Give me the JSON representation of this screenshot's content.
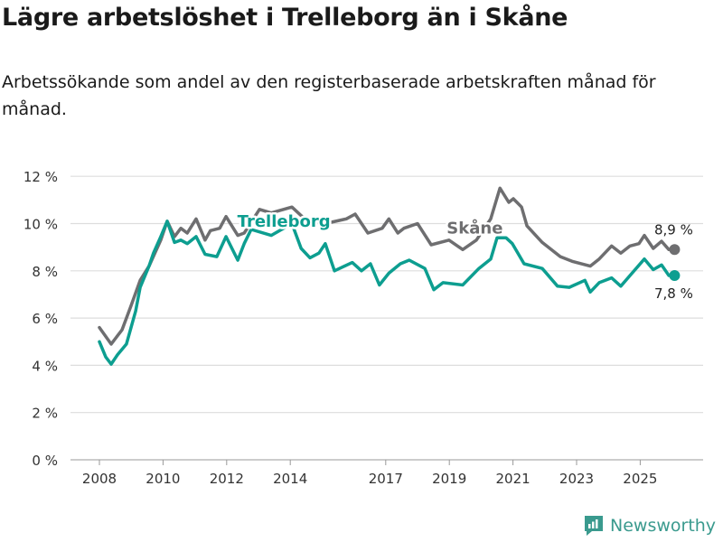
{
  "header": {
    "title": "Lägre arbetslöshet i Trelleborg än i Skåne",
    "subtitle": "Arbetssökande som andel av den registerbaserade arbetskraften månad för månad."
  },
  "brand": {
    "name": "Newsworthy",
    "color": "#3a9a8e"
  },
  "chart_data": {
    "type": "line",
    "title": "Lägre arbetslöshet i Trelleborg än i Skåne",
    "xlabel": "",
    "ylabel": "",
    "ylim": [
      0,
      12
    ],
    "xlim": [
      2007.0,
      2027.0
    ],
    "grid": true,
    "y_ticks": [
      0,
      2,
      4,
      6,
      8,
      10,
      12
    ],
    "y_tick_labels": [
      "0 %",
      "2 %",
      "4 %",
      "6 %",
      "8 %",
      "10 %",
      "12 %"
    ],
    "x_ticks": [
      2008,
      2010,
      2012,
      2014,
      2017,
      2019,
      2021,
      2023,
      2025
    ],
    "x_tick_labels": [
      "2008",
      "2010",
      "2012",
      "2014",
      "2017",
      "2019",
      "2021",
      "2023",
      "2025"
    ],
    "series": [
      {
        "name": "Skåne",
        "color": "#6e6e70",
        "end_label": "8,9 %",
        "points": [
          [
            2008.0,
            5.6
          ],
          [
            2008.37,
            4.9
          ],
          [
            2008.71,
            5.5
          ],
          [
            2008.99,
            6.5
          ],
          [
            2009.28,
            7.6
          ],
          [
            2009.56,
            8.2
          ],
          [
            2009.93,
            9.3
          ],
          [
            2010.13,
            10.1
          ],
          [
            2010.36,
            9.45
          ],
          [
            2010.56,
            9.8
          ],
          [
            2010.76,
            9.6
          ],
          [
            2011.04,
            10.2
          ],
          [
            2011.32,
            9.3
          ],
          [
            2011.49,
            9.7
          ],
          [
            2011.78,
            9.8
          ],
          [
            2011.98,
            10.3
          ],
          [
            2012.35,
            9.5
          ],
          [
            2012.55,
            9.6
          ],
          [
            2013.03,
            10.6
          ],
          [
            2013.4,
            10.45
          ],
          [
            2014.05,
            10.7
          ],
          [
            2014.53,
            10.1
          ],
          [
            2015.1,
            10.0
          ],
          [
            2015.76,
            10.2
          ],
          [
            2016.04,
            10.4
          ],
          [
            2016.44,
            9.6
          ],
          [
            2016.89,
            9.8
          ],
          [
            2017.1,
            10.2
          ],
          [
            2017.38,
            9.6
          ],
          [
            2017.57,
            9.8
          ],
          [
            2018.0,
            10.0
          ],
          [
            2018.43,
            9.1
          ],
          [
            2018.99,
            9.3
          ],
          [
            2019.42,
            8.9
          ],
          [
            2019.85,
            9.3
          ],
          [
            2020.3,
            10.2
          ],
          [
            2020.59,
            11.5
          ],
          [
            2020.87,
            10.9
          ],
          [
            2021.01,
            11.05
          ],
          [
            2021.27,
            10.7
          ],
          [
            2021.44,
            9.9
          ],
          [
            2021.92,
            9.2
          ],
          [
            2022.49,
            8.6
          ],
          [
            2022.86,
            8.4
          ],
          [
            2023.43,
            8.2
          ],
          [
            2023.71,
            8.5
          ],
          [
            2024.1,
            9.05
          ],
          [
            2024.39,
            8.75
          ],
          [
            2024.68,
            9.05
          ],
          [
            2024.96,
            9.15
          ],
          [
            2025.13,
            9.5
          ],
          [
            2025.41,
            8.95
          ],
          [
            2025.67,
            9.25
          ],
          [
            2025.9,
            8.9
          ],
          [
            2026.08,
            8.9
          ]
        ]
      },
      {
        "name": "Trelleborg",
        "color": "#0d9e90",
        "end_label": "7,8 %",
        "points": [
          [
            2008.0,
            5.0
          ],
          [
            2008.2,
            4.35
          ],
          [
            2008.37,
            4.05
          ],
          [
            2008.57,
            4.45
          ],
          [
            2008.85,
            4.9
          ],
          [
            2009.14,
            6.3
          ],
          [
            2009.28,
            7.3
          ],
          [
            2009.56,
            8.2
          ],
          [
            2009.7,
            8.75
          ],
          [
            2009.93,
            9.45
          ],
          [
            2010.13,
            10.1
          ],
          [
            2010.36,
            9.2
          ],
          [
            2010.56,
            9.3
          ],
          [
            2010.76,
            9.15
          ],
          [
            2011.04,
            9.45
          ],
          [
            2011.32,
            8.7
          ],
          [
            2011.69,
            8.6
          ],
          [
            2011.98,
            9.45
          ],
          [
            2012.35,
            8.45
          ],
          [
            2012.55,
            9.15
          ],
          [
            2012.77,
            9.75
          ],
          [
            2013.4,
            9.5
          ],
          [
            2014.05,
            10.0
          ],
          [
            2014.34,
            8.95
          ],
          [
            2014.62,
            8.55
          ],
          [
            2014.9,
            8.75
          ],
          [
            2015.1,
            9.15
          ],
          [
            2015.39,
            8.0
          ],
          [
            2015.95,
            8.35
          ],
          [
            2016.24,
            8.0
          ],
          [
            2016.52,
            8.3
          ],
          [
            2016.8,
            7.4
          ],
          [
            2017.1,
            7.9
          ],
          [
            2017.46,
            8.3
          ],
          [
            2017.74,
            8.45
          ],
          [
            2018.23,
            8.1
          ],
          [
            2018.51,
            7.2
          ],
          [
            2018.8,
            7.5
          ],
          [
            2019.42,
            7.4
          ],
          [
            2019.93,
            8.1
          ],
          [
            2020.3,
            8.5
          ],
          [
            2020.5,
            9.4
          ],
          [
            2020.78,
            9.4
          ],
          [
            2020.98,
            9.15
          ],
          [
            2021.35,
            8.3
          ],
          [
            2021.92,
            8.1
          ],
          [
            2022.4,
            7.35
          ],
          [
            2022.77,
            7.3
          ],
          [
            2023.26,
            7.6
          ],
          [
            2023.43,
            7.1
          ],
          [
            2023.71,
            7.5
          ],
          [
            2024.1,
            7.7
          ],
          [
            2024.39,
            7.35
          ],
          [
            2024.68,
            7.8
          ],
          [
            2025.13,
            8.5
          ],
          [
            2025.41,
            8.05
          ],
          [
            2025.67,
            8.25
          ],
          [
            2025.9,
            7.8
          ],
          [
            2026.08,
            7.8
          ]
        ]
      }
    ],
    "annotations": [
      {
        "text": "Trelleborg",
        "series": "Trelleborg",
        "at": [
          2013.8,
          10.1
        ]
      },
      {
        "text": "Skåne",
        "series": "Skåne",
        "at": [
          2019.8,
          9.8
        ]
      }
    ],
    "legend": "none (inline labels)"
  }
}
